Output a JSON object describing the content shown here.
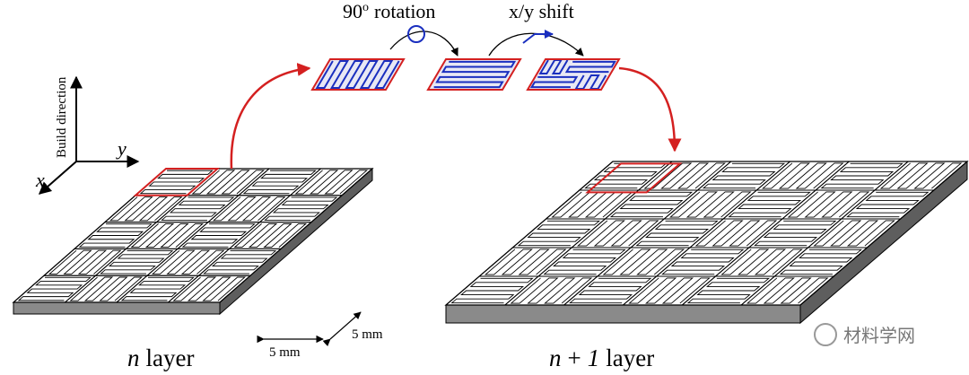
{
  "labels": {
    "rotation": {
      "number": "90",
      "superscript": "o",
      "word": "rotation"
    },
    "shift": "x/y shift",
    "build_direction": "Build direction",
    "axis_y": "y",
    "axis_x": "x",
    "dim_1": "5 mm",
    "dim_2": "5 mm",
    "layer_n": {
      "variable": "n",
      "word": "layer"
    },
    "layer_n1": {
      "variable": "n",
      "operator": "+",
      "number": "1",
      "word": "layer"
    },
    "watermark": "材料学网"
  }
}
